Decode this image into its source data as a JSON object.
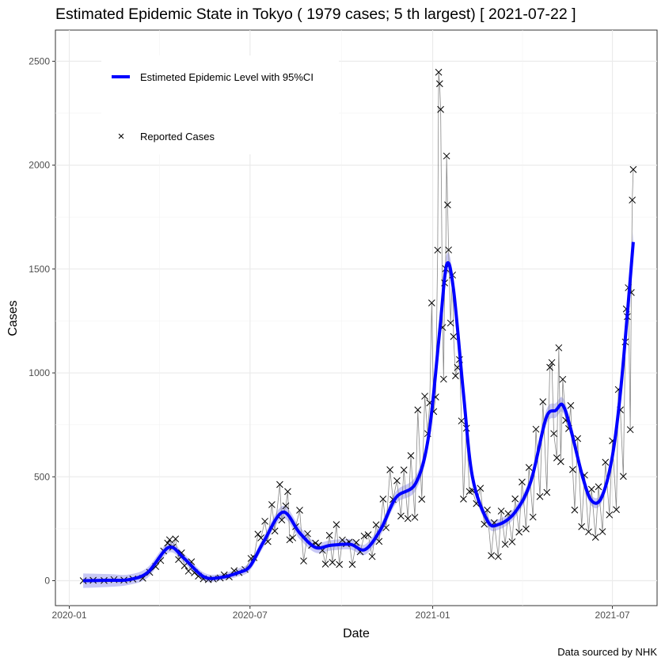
{
  "chart_data": {
    "type": "line",
    "title": "Estimated Epidemic State in Tokyo  ( 1979 cases; 5 th largest) [ 2021-07-22 ]",
    "xlabel": "Date",
    "ylabel": "Cases",
    "caption": "Data sourced by NHK",
    "xlim": [
      "2019-12-18",
      "2021-08-15"
    ],
    "ylim": [
      -120,
      2650
    ],
    "x_ticks": [
      "2020-01",
      "2020-07",
      "2021-01",
      "2021-07"
    ],
    "x_tick_dates": [
      "2020-01-01",
      "2020-07-01",
      "2021-01-01",
      "2021-07-01"
    ],
    "y_ticks": [
      0,
      500,
      1000,
      1500,
      2000,
      2500
    ],
    "grid": true,
    "legend": {
      "placement": "top-left",
      "items": [
        {
          "label": "Estimeted Epidemic Level with 95%CI",
          "color": "#0000ff"
        },
        {
          "label": "Reported Cases",
          "marker": "x",
          "color": "#000000"
        }
      ]
    },
    "colors": {
      "level": "#0000ff",
      "ci": "#c8c8f5",
      "cases_line": "#888888",
      "marker": "#000000"
    },
    "series": [
      {
        "name": "Estimeted Epidemic Level with 95%CI",
        "points": [
          [
            "2020-01-15",
            0,
            -35,
            35
          ],
          [
            "2020-02-10",
            2,
            -30,
            32
          ],
          [
            "2020-03-01",
            5,
            -20,
            30
          ],
          [
            "2020-03-20",
            40,
            15,
            65
          ],
          [
            "2020-04-10",
            160,
            135,
            185
          ],
          [
            "2020-04-25",
            110,
            88,
            132
          ],
          [
            "2020-05-15",
            20,
            0,
            40
          ],
          [
            "2020-06-01",
            15,
            0,
            32
          ],
          [
            "2020-06-20",
            40,
            22,
            60
          ],
          [
            "2020-07-01",
            70,
            50,
            92
          ],
          [
            "2020-07-15",
            190,
            165,
            215
          ],
          [
            "2020-08-03",
            330,
            300,
            360
          ],
          [
            "2020-08-20",
            230,
            200,
            260
          ],
          [
            "2020-09-05",
            160,
            135,
            185
          ],
          [
            "2020-09-20",
            170,
            145,
            195
          ],
          [
            "2020-10-10",
            175,
            150,
            200
          ],
          [
            "2020-10-25",
            150,
            125,
            175
          ],
          [
            "2020-11-10",
            250,
            222,
            278
          ],
          [
            "2020-11-25",
            400,
            370,
            430
          ],
          [
            "2020-12-15",
            470,
            435,
            505
          ],
          [
            "2020-12-28",
            700,
            660,
            740
          ],
          [
            "2021-01-08",
            1200,
            1150,
            1250
          ],
          [
            "2021-01-15",
            1520,
            1470,
            1570
          ],
          [
            "2021-01-22",
            1400,
            1350,
            1450
          ],
          [
            "2021-02-01",
            900,
            860,
            940
          ],
          [
            "2021-02-10",
            500,
            470,
            530
          ],
          [
            "2021-02-25",
            290,
            265,
            315
          ],
          [
            "2021-03-08",
            270,
            245,
            295
          ],
          [
            "2021-03-25",
            330,
            305,
            355
          ],
          [
            "2021-04-10",
            480,
            450,
            510
          ],
          [
            "2021-04-25",
            780,
            745,
            815
          ],
          [
            "2021-05-05",
            820,
            785,
            855
          ],
          [
            "2021-05-12",
            845,
            810,
            880
          ],
          [
            "2021-05-20",
            730,
            695,
            765
          ],
          [
            "2021-06-01",
            500,
            470,
            530
          ],
          [
            "2021-06-10",
            385,
            360,
            410
          ],
          [
            "2021-06-20",
            400,
            375,
            425
          ],
          [
            "2021-07-01",
            600,
            570,
            630
          ],
          [
            "2021-07-10",
            950,
            910,
            990
          ],
          [
            "2021-07-22",
            1630,
            1580,
            1680
          ]
        ]
      },
      {
        "name": "Reported Cases",
        "points": [
          [
            "2020-01-15",
            0
          ],
          [
            "2020-01-25",
            2
          ],
          [
            "2020-02-05",
            1
          ],
          [
            "2020-02-15",
            5
          ],
          [
            "2020-02-25",
            3
          ],
          [
            "2020-03-05",
            8
          ],
          [
            "2020-03-15",
            12
          ],
          [
            "2020-03-22",
            40
          ],
          [
            "2020-03-28",
            68
          ],
          [
            "2020-04-02",
            97
          ],
          [
            "2020-04-05",
            143
          ],
          [
            "2020-04-09",
            181
          ],
          [
            "2020-04-11",
            197
          ],
          [
            "2020-04-14",
            161
          ],
          [
            "2020-04-17",
            201
          ],
          [
            "2020-04-20",
            102
          ],
          [
            "2020-04-23",
            134
          ],
          [
            "2020-04-26",
            72
          ],
          [
            "2020-04-30",
            46
          ],
          [
            "2020-05-03",
            91
          ],
          [
            "2020-05-06",
            38
          ],
          [
            "2020-05-10",
            22
          ],
          [
            "2020-05-15",
            9
          ],
          [
            "2020-05-20",
            5
          ],
          [
            "2020-05-25",
            8
          ],
          [
            "2020-06-01",
            13
          ],
          [
            "2020-06-05",
            28
          ],
          [
            "2020-06-10",
            18
          ],
          [
            "2020-06-15",
            48
          ],
          [
            "2020-06-20",
            39
          ],
          [
            "2020-06-26",
            54
          ],
          [
            "2020-07-02",
            107
          ],
          [
            "2020-07-05",
            111
          ],
          [
            "2020-07-09",
            224
          ],
          [
            "2020-07-12",
            206
          ],
          [
            "2020-07-16",
            286
          ],
          [
            "2020-07-19",
            188
          ],
          [
            "2020-07-23",
            366
          ],
          [
            "2020-07-26",
            239
          ],
          [
            "2020-07-31",
            463
          ],
          [
            "2020-08-02",
            292
          ],
          [
            "2020-08-06",
            360
          ],
          [
            "2020-08-08",
            429
          ],
          [
            "2020-08-10",
            197
          ],
          [
            "2020-08-13",
            206
          ],
          [
            "2020-08-16",
            260
          ],
          [
            "2020-08-20",
            339
          ],
          [
            "2020-08-24",
            95
          ],
          [
            "2020-08-28",
            226
          ],
          [
            "2020-09-01",
            170
          ],
          [
            "2020-09-05",
            181
          ],
          [
            "2020-09-08",
            170
          ],
          [
            "2020-09-12",
            146
          ],
          [
            "2020-09-15",
            80
          ],
          [
            "2020-09-19",
            218
          ],
          [
            "2020-09-22",
            88
          ],
          [
            "2020-09-26",
            270
          ],
          [
            "2020-09-29",
            78
          ],
          [
            "2020-10-02",
            196
          ],
          [
            "2020-10-06",
            178
          ],
          [
            "2020-10-09",
            186
          ],
          [
            "2020-10-12",
            78
          ],
          [
            "2020-10-16",
            184
          ],
          [
            "2020-10-20",
            139
          ],
          [
            "2020-10-24",
            215
          ],
          [
            "2020-10-28",
            221
          ],
          [
            "2020-11-01",
            116
          ],
          [
            "2020-11-05",
            269
          ],
          [
            "2020-11-08",
            189
          ],
          [
            "2020-11-12",
            393
          ],
          [
            "2020-11-15",
            255
          ],
          [
            "2020-11-19",
            534
          ],
          [
            "2020-11-22",
            391
          ],
          [
            "2020-11-26",
            481
          ],
          [
            "2020-11-30",
            311
          ],
          [
            "2020-12-03",
            533
          ],
          [
            "2020-12-07",
            299
          ],
          [
            "2020-12-10",
            602
          ],
          [
            "2020-12-14",
            305
          ],
          [
            "2020-12-17",
            822
          ],
          [
            "2020-12-21",
            392
          ],
          [
            "2020-12-24",
            888
          ],
          [
            "2020-12-27",
            708
          ],
          [
            "2020-12-29",
            856
          ],
          [
            "2020-12-31",
            1337
          ],
          [
            "2021-01-02",
            814
          ],
          [
            "2021-01-04",
            884
          ],
          [
            "2021-01-06",
            1591
          ],
          [
            "2021-01-07",
            2447
          ],
          [
            "2021-01-08",
            2392
          ],
          [
            "2021-01-09",
            2268
          ],
          [
            "2021-01-11",
            1219
          ],
          [
            "2021-01-12",
            970
          ],
          [
            "2021-01-13",
            1433
          ],
          [
            "2021-01-14",
            1502
          ],
          [
            "2021-01-15",
            2044
          ],
          [
            "2021-01-16",
            1809
          ],
          [
            "2021-01-17",
            1592
          ],
          [
            "2021-01-19",
            1240
          ],
          [
            "2021-01-21",
            1471
          ],
          [
            "2021-01-22",
            1175
          ],
          [
            "2021-01-24",
            986
          ],
          [
            "2021-01-26",
            1026
          ],
          [
            "2021-01-28",
            1064
          ],
          [
            "2021-01-30",
            769
          ],
          [
            "2021-02-01",
            393
          ],
          [
            "2021-02-04",
            734
          ],
          [
            "2021-02-07",
            429
          ],
          [
            "2021-02-10",
            434
          ],
          [
            "2021-02-14",
            371
          ],
          [
            "2021-02-18",
            445
          ],
          [
            "2021-02-22",
            272
          ],
          [
            "2021-02-25",
            340
          ],
          [
            "2021-03-01",
            121
          ],
          [
            "2021-03-04",
            279
          ],
          [
            "2021-03-08",
            116
          ],
          [
            "2021-03-11",
            335
          ],
          [
            "2021-03-15",
            175
          ],
          [
            "2021-03-18",
            323
          ],
          [
            "2021-03-22",
            187
          ],
          [
            "2021-03-25",
            394
          ],
          [
            "2021-03-29",
            234
          ],
          [
            "2021-04-01",
            475
          ],
          [
            "2021-04-05",
            249
          ],
          [
            "2021-04-08",
            545
          ],
          [
            "2021-04-12",
            306
          ],
          [
            "2021-04-15",
            729
          ],
          [
            "2021-04-19",
            405
          ],
          [
            "2021-04-22",
            861
          ],
          [
            "2021-04-26",
            425
          ],
          [
            "2021-04-29",
            1027
          ],
          [
            "2021-05-01",
            1050
          ],
          [
            "2021-05-03",
            708
          ],
          [
            "2021-05-06",
            591
          ],
          [
            "2021-05-08",
            1121
          ],
          [
            "2021-05-10",
            573
          ],
          [
            "2021-05-12",
            969
          ],
          [
            "2021-05-15",
            772
          ],
          [
            "2021-05-18",
            732
          ],
          [
            "2021-05-20",
            843
          ],
          [
            "2021-05-22",
            535
          ],
          [
            "2021-05-24",
            340
          ],
          [
            "2021-05-27",
            684
          ],
          [
            "2021-05-31",
            260
          ],
          [
            "2021-06-03",
            508
          ],
          [
            "2021-06-07",
            235
          ],
          [
            "2021-06-10",
            440
          ],
          [
            "2021-06-14",
            209
          ],
          [
            "2021-06-17",
            452
          ],
          [
            "2021-06-21",
            236
          ],
          [
            "2021-06-24",
            570
          ],
          [
            "2021-06-28",
            317
          ],
          [
            "2021-07-01",
            673
          ],
          [
            "2021-07-05",
            342
          ],
          [
            "2021-07-07",
            920
          ],
          [
            "2021-07-09",
            822
          ],
          [
            "2021-07-12",
            502
          ],
          [
            "2021-07-14",
            1149
          ],
          [
            "2021-07-15",
            1308
          ],
          [
            "2021-07-16",
            1271
          ],
          [
            "2021-07-17",
            1410
          ],
          [
            "2021-07-19",
            727
          ],
          [
            "2021-07-20",
            1387
          ],
          [
            "2021-07-21",
            1832
          ],
          [
            "2021-07-22",
            1979
          ]
        ]
      }
    ]
  }
}
